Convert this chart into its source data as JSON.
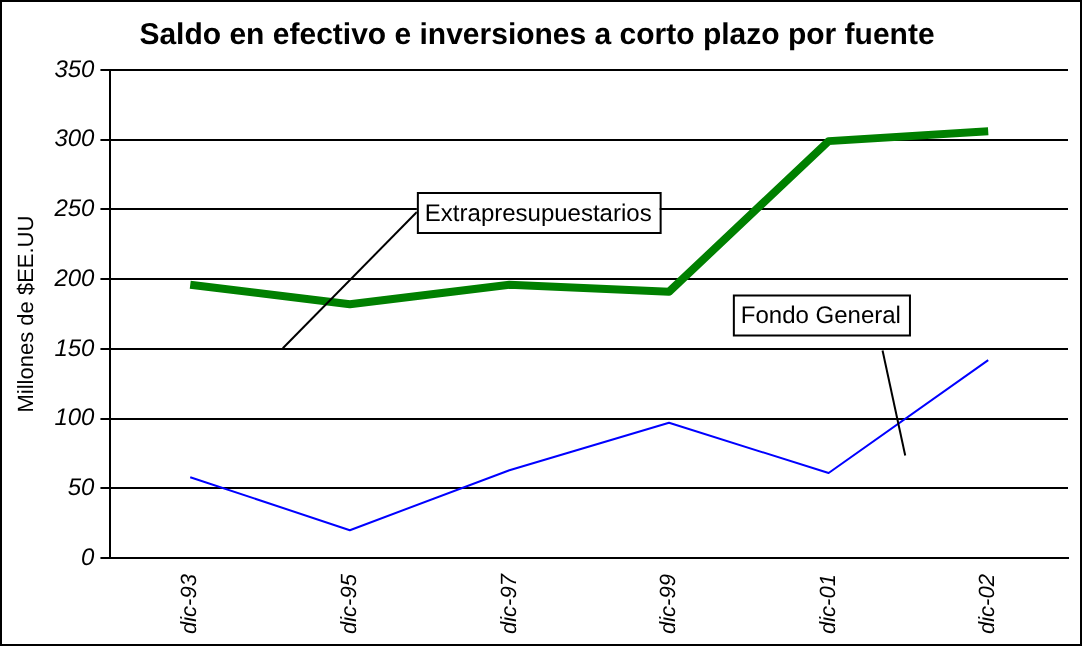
{
  "chart_data": {
    "type": "line",
    "title": "Saldo en efectivo e inversiones a corto plazo por fuente",
    "ylabel": "Millones de $EE.UU",
    "categories": [
      "dic-93",
      "dic-95",
      "dic-97",
      "dic-99",
      "dic-01",
      "dic-02"
    ],
    "series": [
      {
        "name": "Extrapresupuestarios",
        "color": "#008000",
        "values": [
          196,
          182,
          196,
          191,
          299,
          306
        ]
      },
      {
        "name": "Fondo General",
        "color": "#0000ff",
        "values": [
          58,
          20,
          63,
          97,
          61,
          142
        ]
      }
    ],
    "ylim": [
      0,
      350
    ],
    "yticks": [
      0,
      50,
      100,
      150,
      200,
      250,
      300,
      350
    ],
    "grid": "y",
    "legend": false,
    "marker": "none",
    "line_style": "solid"
  }
}
